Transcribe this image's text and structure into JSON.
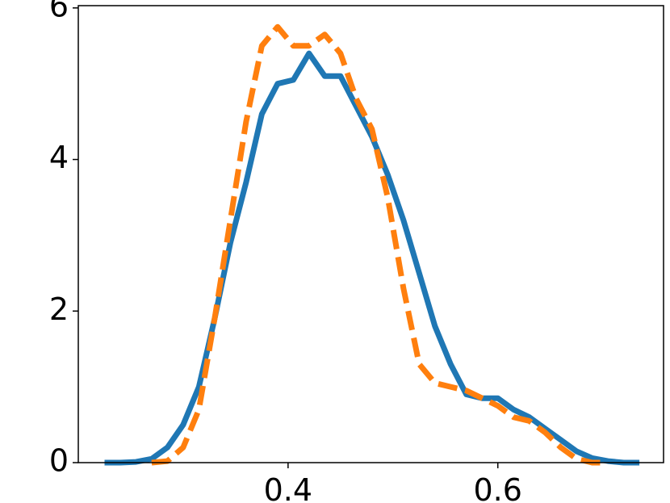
{
  "chart_data": {
    "type": "line",
    "x": [
      0.225,
      0.24,
      0.255,
      0.27,
      0.285,
      0.3,
      0.315,
      0.33,
      0.345,
      0.36,
      0.375,
      0.39,
      0.405,
      0.42,
      0.435,
      0.45,
      0.465,
      0.48,
      0.495,
      0.51,
      0.525,
      0.54,
      0.555,
      0.57,
      0.585,
      0.6,
      0.615,
      0.63,
      0.645,
      0.66,
      0.675,
      0.69,
      0.705,
      0.72,
      0.735
    ],
    "series": [
      {
        "color": "#1f77b4",
        "dashed": false,
        "values": [
          0,
          0,
          0.01,
          0.05,
          0.2,
          0.5,
          1.0,
          1.9,
          2.9,
          3.7,
          4.6,
          5.0,
          5.05,
          5.4,
          5.1,
          5.1,
          4.7,
          4.3,
          3.8,
          3.2,
          2.5,
          1.8,
          1.3,
          0.9,
          0.85,
          0.85,
          0.7,
          0.6,
          0.45,
          0.3,
          0.15,
          0.06,
          0.02,
          0,
          0
        ]
      },
      {
        "color": "#ff7f0e",
        "dashed": true,
        "values": [
          null,
          null,
          null,
          0,
          0.02,
          0.2,
          0.7,
          1.9,
          3.2,
          4.5,
          5.5,
          5.75,
          5.5,
          5.5,
          5.65,
          5.4,
          4.8,
          4.4,
          3.5,
          2.3,
          1.3,
          1.05,
          1.0,
          0.95,
          0.85,
          0.75,
          0.6,
          0.55,
          0.4,
          0.2,
          0.05,
          0,
          0,
          null,
          null
        ]
      }
    ],
    "xlim": [
      0.2,
      0.758
    ],
    "xticks": [
      0.4,
      0.6
    ],
    "ylim": [
      0,
      6.03
    ],
    "yticks": [
      0,
      2,
      4,
      6
    ]
  }
}
